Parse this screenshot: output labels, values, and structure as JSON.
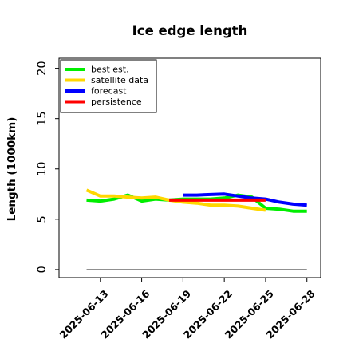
{
  "chart_data": {
    "type": "line",
    "title": "Ice edge length",
    "xlabel": "",
    "ylabel": "Length (1000km)",
    "ylim": [
      -0.8,
      21
    ],
    "xlim": [
      "2025-06-10",
      "2025-06-29"
    ],
    "y_ticks": [
      0,
      5,
      10,
      15,
      20
    ],
    "x_ticks": [
      "2025-06-13",
      "2025-06-16",
      "2025-06-19",
      "2025-06-22",
      "2025-06-25",
      "2025-06-28"
    ],
    "highlight_tick": {
      "label": "2025-06-19",
      "color": "#228b22"
    },
    "grid": false,
    "legend": "top-left",
    "reference_line": {
      "y": 0,
      "color": "#808080"
    },
    "series": [
      {
        "name": "best est.",
        "color": "#00ee00",
        "x": [
          "2025-06-12",
          "2025-06-13",
          "2025-06-14",
          "2025-06-15",
          "2025-06-16",
          "2025-06-17",
          "2025-06-18",
          "2025-06-19",
          "2025-06-20",
          "2025-06-21",
          "2025-06-22",
          "2025-06-23",
          "2025-06-24",
          "2025-06-25",
          "2025-06-26",
          "2025-06-27",
          "2025-06-28"
        ],
        "values": [
          6.9,
          6.8,
          7.0,
          7.4,
          6.8,
          7.0,
          6.9,
          7.0,
          7.0,
          7.0,
          7.1,
          7.4,
          7.2,
          6.1,
          6.0,
          5.8,
          5.8
        ]
      },
      {
        "name": "satellite data",
        "color": "#ffd700",
        "x": [
          "2025-06-12",
          "2025-06-13",
          "2025-06-14",
          "2025-06-15",
          "2025-06-16",
          "2025-06-17",
          "2025-06-18",
          "2025-06-19",
          "2025-06-20",
          "2025-06-21",
          "2025-06-22",
          "2025-06-23",
          "2025-06-24",
          "2025-06-25"
        ],
        "values": [
          7.9,
          7.3,
          7.3,
          7.2,
          7.1,
          7.2,
          6.9,
          6.7,
          6.6,
          6.4,
          6.4,
          6.3,
          6.1,
          5.9
        ]
      },
      {
        "name": "forecast",
        "color": "#0000ff",
        "x": [
          "2025-06-19",
          "2025-06-20",
          "2025-06-21",
          "2025-06-22",
          "2025-06-23",
          "2025-06-24",
          "2025-06-25",
          "2025-06-26",
          "2025-06-27",
          "2025-06-28"
        ],
        "values": [
          7.4,
          7.4,
          7.45,
          7.5,
          7.3,
          7.1,
          7.0,
          6.7,
          6.5,
          6.4
        ]
      },
      {
        "name": "persistence",
        "color": "#ff0000",
        "x": [
          "2025-06-18",
          "2025-06-19",
          "2025-06-20",
          "2025-06-21",
          "2025-06-22",
          "2025-06-23",
          "2025-06-24",
          "2025-06-25"
        ],
        "values": [
          6.9,
          6.9,
          6.9,
          6.9,
          6.9,
          6.9,
          6.9,
          6.9
        ]
      }
    ]
  }
}
